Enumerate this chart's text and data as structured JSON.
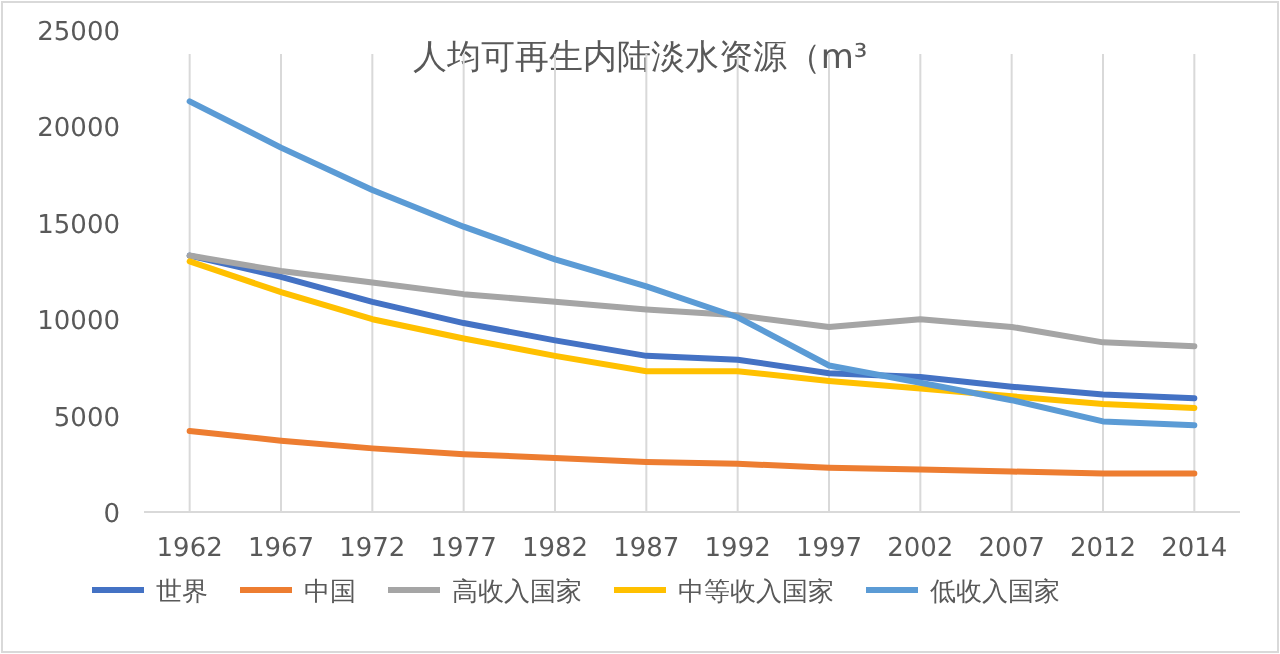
{
  "chart_data": {
    "type": "line",
    "title": "人均可再生内陆淡水资源（m³",
    "categories": [
      "1962",
      "1967",
      "1972",
      "1977",
      "1982",
      "1987",
      "1992",
      "1997",
      "2002",
      "2007",
      "2012",
      "2014"
    ],
    "series": [
      {
        "name": "世界",
        "color": "#4472c4",
        "values": [
          13300,
          12200,
          10900,
          9800,
          8900,
          8100,
          7900,
          7200,
          7000,
          6500,
          6100,
          5900
        ]
      },
      {
        "name": "中国",
        "color": "#ed7d31",
        "values": [
          4200,
          3700,
          3300,
          3000,
          2800,
          2600,
          2500,
          2300,
          2200,
          2100,
          2000,
          2000
        ]
      },
      {
        "name": "高收入国家",
        "color": "#a5a5a5",
        "values": [
          13300,
          12500,
          11900,
          11300,
          10900,
          10500,
          10200,
          9600,
          10000,
          9600,
          8800,
          8600
        ]
      },
      {
        "name": "中等收入国家",
        "color": "#ffc000",
        "values": [
          13000,
          11400,
          10000,
          9000,
          8100,
          7300,
          7300,
          6800,
          6400,
          6000,
          5600,
          5400
        ]
      },
      {
        "name": "低收入国家",
        "color": "#5b9bd5",
        "values": [
          21300,
          18900,
          16700,
          14800,
          13100,
          11700,
          10100,
          7600,
          6700,
          5800,
          4700,
          4500
        ]
      }
    ],
    "ylim": [
      0,
      25000
    ],
    "yticks": [
      0,
      5000,
      10000,
      15000,
      20000,
      25000
    ],
    "grid": "x",
    "legend": "bottom",
    "marker": "none",
    "line_style": "solid"
  }
}
